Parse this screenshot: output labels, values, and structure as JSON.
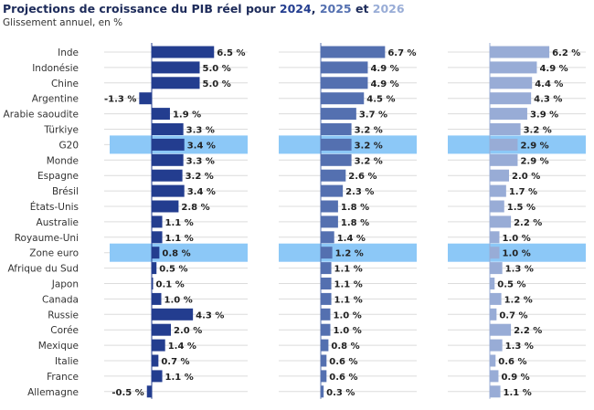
{
  "chart_data": {
    "type": "bar",
    "orientation": "horizontal",
    "title_parts": [
      "Projections de croissance du PIB réel pour ",
      "2024",
      ", ",
      "2025",
      " et ",
      "2026"
    ],
    "subtitle": "Glissement annuel, en %",
    "categories": [
      "Inde",
      "Indonésie",
      "Chine",
      "Argentine",
      "Arabie saoudite",
      "Türkiye",
      "G20",
      "Monde",
      "Espagne",
      "Brésil",
      "États-Unis",
      "Australie",
      "Royaume-Uni",
      "Zone euro",
      "Afrique du Sud",
      "Japon",
      "Canada",
      "Russie",
      "Corée",
      "Mexique",
      "Italie",
      "France",
      "Allemagne"
    ],
    "highlighted": [
      "G20",
      "Zone euro"
    ],
    "highlight_color": "#8cc8f7",
    "series": [
      {
        "name": "2024",
        "color": "#233d8f",
        "values": [
          6.5,
          5.0,
          5.0,
          -1.3,
          1.9,
          3.3,
          3.4,
          3.3,
          3.2,
          3.4,
          2.8,
          1.1,
          1.1,
          0.8,
          0.5,
          0.1,
          1.0,
          4.3,
          2.0,
          1.4,
          0.7,
          1.1,
          -0.5
        ]
      },
      {
        "name": "2025",
        "color": "#5470b0",
        "values": [
          6.7,
          4.9,
          4.9,
          4.5,
          3.7,
          3.2,
          3.2,
          3.2,
          2.6,
          2.3,
          1.8,
          1.8,
          1.4,
          1.2,
          1.1,
          1.1,
          1.1,
          1.0,
          1.0,
          0.8,
          0.6,
          0.6,
          0.3
        ]
      },
      {
        "name": "2026",
        "color": "#98acd6",
        "values": [
          6.2,
          4.9,
          4.4,
          4.3,
          3.9,
          3.2,
          2.9,
          2.9,
          2.0,
          1.7,
          1.5,
          2.2,
          1.0,
          1.0,
          1.3,
          0.5,
          1.2,
          0.7,
          2.2,
          1.3,
          0.6,
          0.9,
          1.1
        ]
      }
    ],
    "value_suffix": " %",
    "grid": true
  }
}
